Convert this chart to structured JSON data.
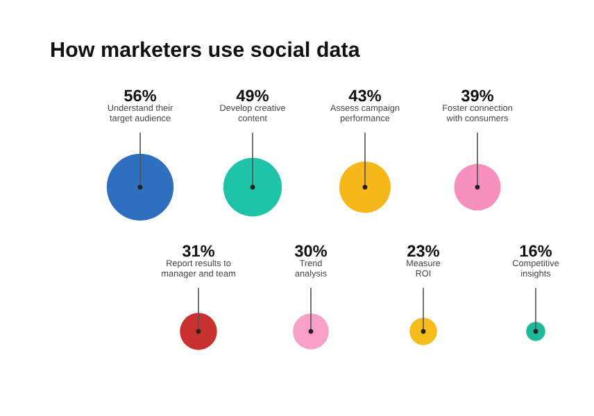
{
  "chart_data": {
    "type": "other",
    "title": "How marketers use social data",
    "categories": [
      "Understand their\ntarget audience",
      "Develop creative\ncontent",
      "Assess campaign\nperformance",
      "Foster connection\nwith consumers",
      "Report results to\nmanager and team",
      "Trend\nanalysis",
      "Measure\nROI",
      "Competitive\ninsights"
    ],
    "values": [
      56,
      49,
      43,
      39,
      31,
      30,
      23,
      16
    ],
    "value_labels": [
      "56%",
      "49%",
      "43%",
      "39%",
      "31%",
      "30%",
      "23%",
      "16%"
    ],
    "colors": [
      "#2e6fbf",
      "#1ec3a8",
      "#f6b71a",
      "#f78fbf",
      "#c8312f",
      "#f7a0c8",
      "#f5bb1a",
      "#1fb89a"
    ]
  }
}
